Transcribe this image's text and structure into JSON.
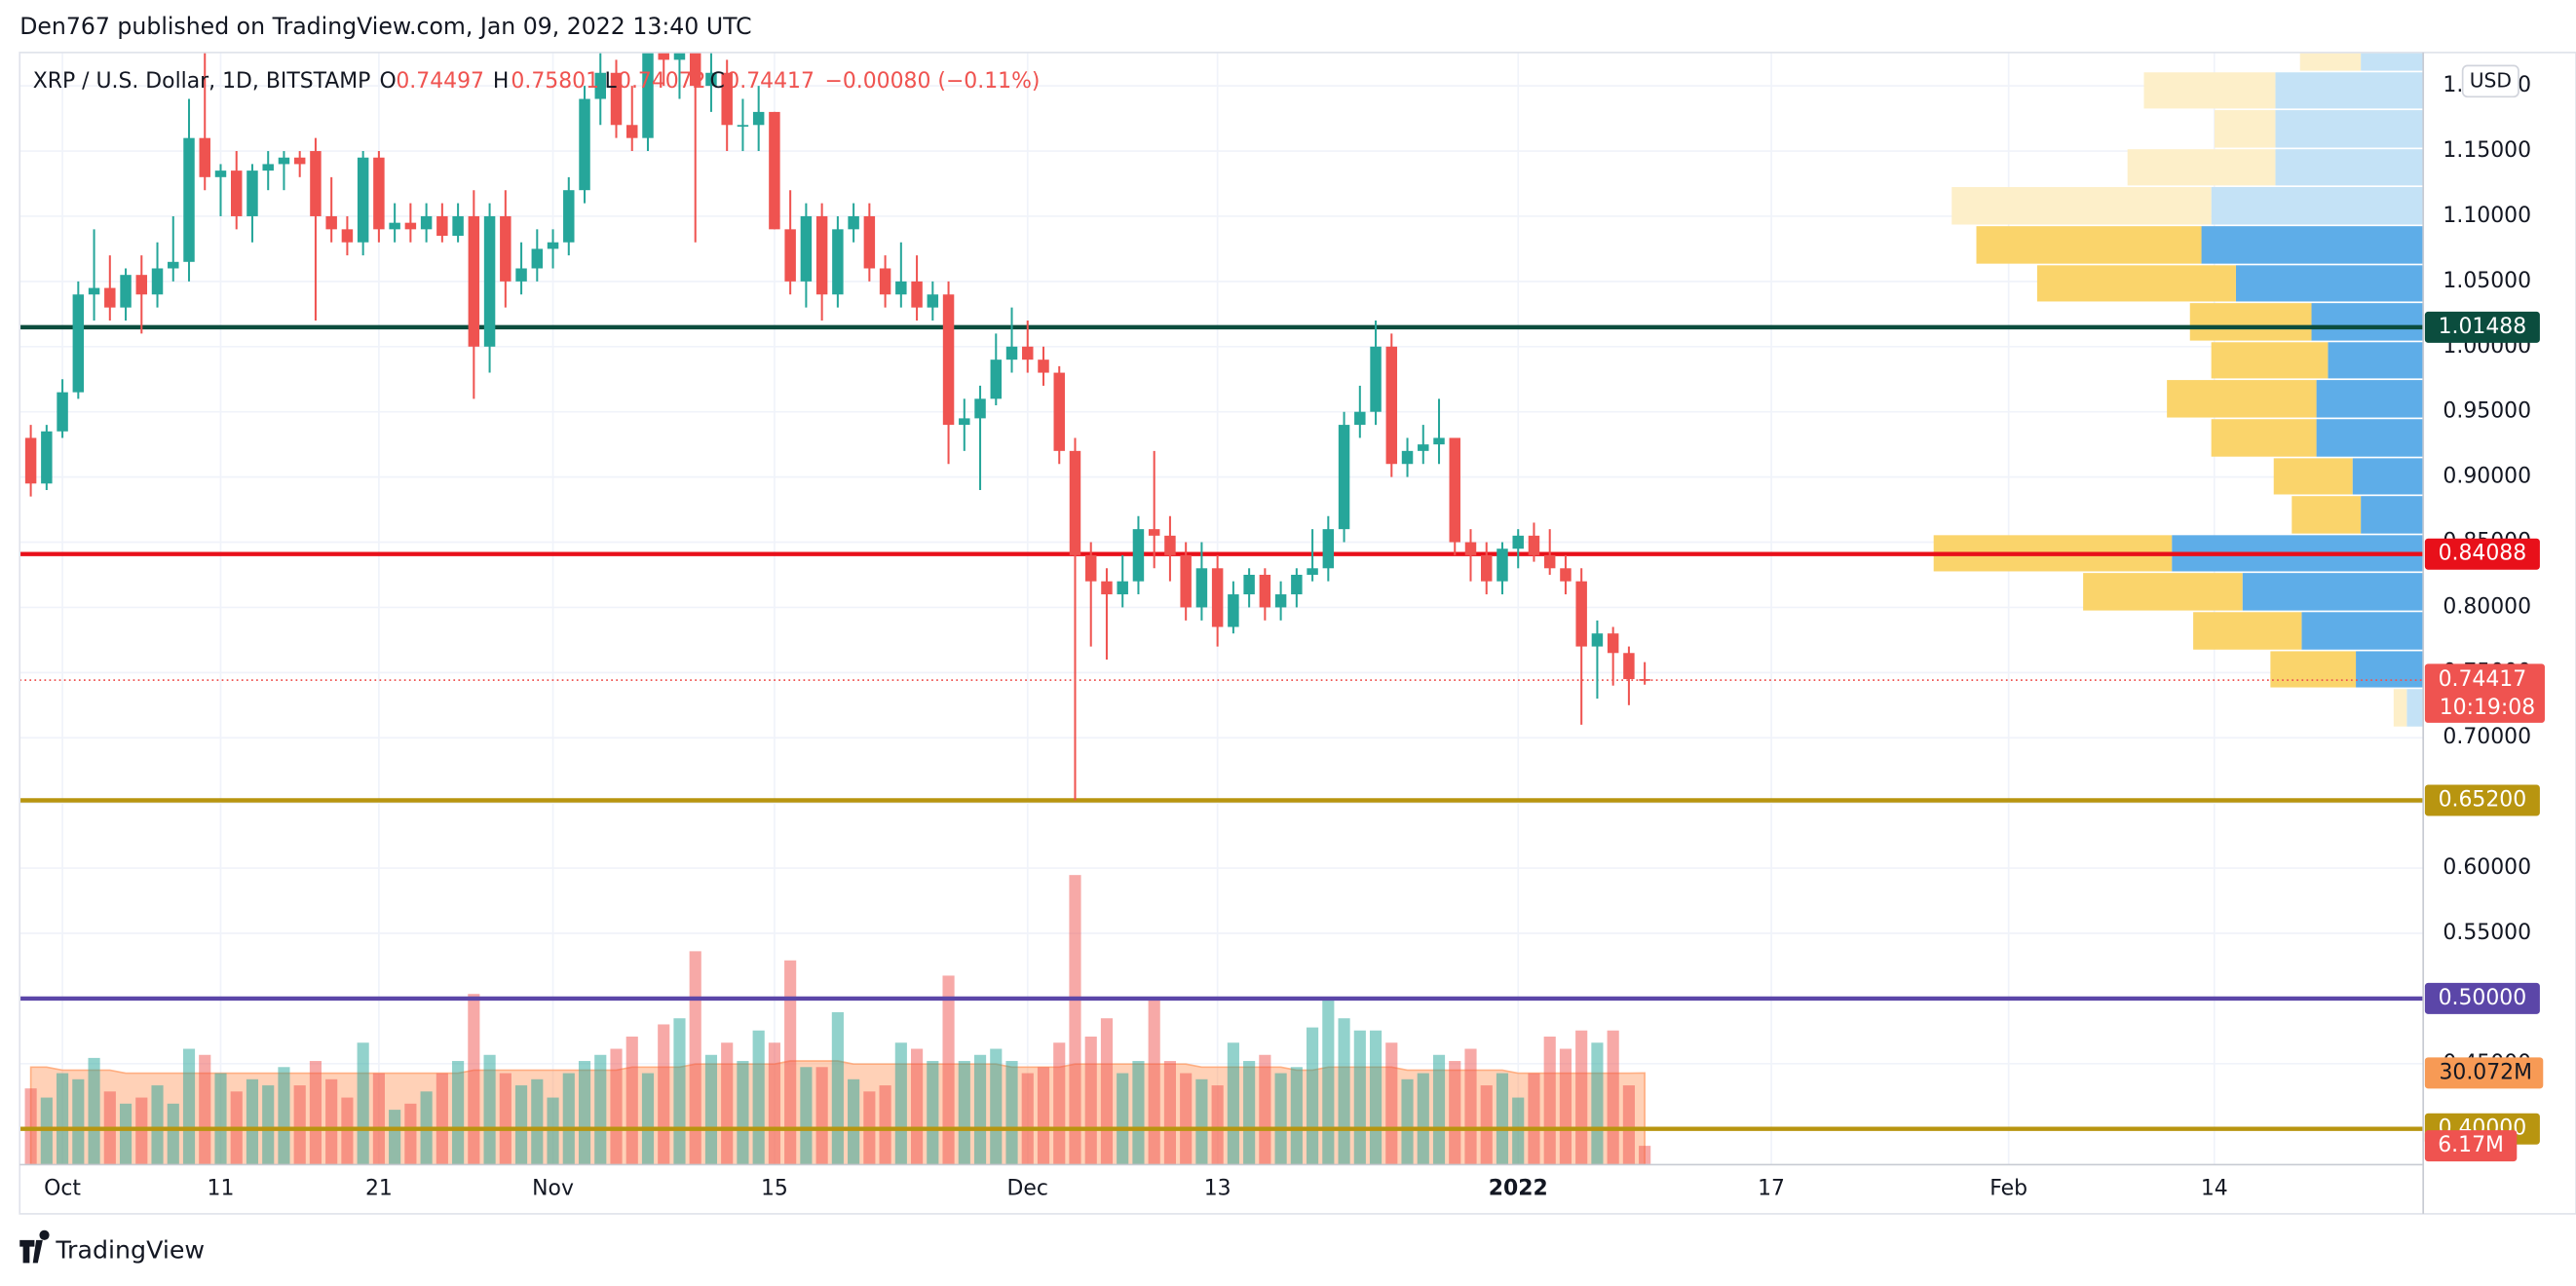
{
  "published": "Den767 published on TradingView.com, Jan 09, 2022 13:40 UTC",
  "brand": "TradingView",
  "chart_data": {
    "type": "candlestick",
    "legend": {
      "symbol": "XRP / U.S. Dollar, 1D, BITSTAMP",
      "o": "O",
      "h": "H",
      "l": "L",
      "c": "C",
      "change": "−0.00080 (−0.11%)"
    },
    "currency": "USD",
    "up_color": "#26a69a",
    "down_color": "#ef5350",
    "xlim": [
      -0.7,
      151.2
    ],
    "xticks": [
      {
        "value": 2,
        "label": "Oct"
      },
      {
        "value": 12,
        "label": "11"
      },
      {
        "value": 22,
        "label": "21"
      },
      {
        "value": 33,
        "label": "Nov"
      },
      {
        "value": 47,
        "label": "15"
      },
      {
        "value": 63,
        "label": "Dec"
      },
      {
        "value": 75,
        "label": "13"
      },
      {
        "value": 94,
        "label": "2022"
      },
      {
        "value": 110,
        "label": "17"
      },
      {
        "value": 125,
        "label": "Feb"
      },
      {
        "value": 138,
        "label": "14"
      }
    ],
    "ylim": [
      0.3726,
      1.2256
    ],
    "yticks": [
      {
        "value": 0.4,
        "label": "0.40000"
      },
      {
        "value": 0.45,
        "label": "0.45000"
      },
      {
        "value": 0.5,
        "label": "0.50000"
      },
      {
        "value": 0.55,
        "label": "0.55000"
      },
      {
        "value": 0.6,
        "label": "0.60000"
      },
      {
        "value": 0.65,
        "label": "0.65000"
      },
      {
        "value": 0.7,
        "label": "0.70000"
      },
      {
        "value": 0.75,
        "label": "0.75000"
      },
      {
        "value": 0.8,
        "label": "0.80000"
      },
      {
        "value": 0.85,
        "label": "0.85000"
      },
      {
        "value": 0.9,
        "label": "0.90000"
      },
      {
        "value": 0.95,
        "label": "0.95000"
      },
      {
        "value": 1.0,
        "label": "1.00000"
      },
      {
        "value": 1.05,
        "label": "1.05000"
      },
      {
        "value": 1.1,
        "label": "1.10000"
      },
      {
        "value": 1.15,
        "label": "1.15000"
      },
      {
        "value": 1.2,
        "label": "1.20000"
      }
    ],
    "grid": true,
    "candles": [
      [
        0.93,
        0.94,
        0.885,
        0.895
      ],
      [
        0.895,
        0.94,
        0.89,
        0.935
      ],
      [
        0.935,
        0.975,
        0.93,
        0.965
      ],
      [
        0.965,
        1.05,
        0.96,
        1.04
      ],
      [
        1.04,
        1.09,
        1.02,
        1.045
      ],
      [
        1.045,
        1.07,
        1.02,
        1.03
      ],
      [
        1.03,
        1.06,
        1.02,
        1.055
      ],
      [
        1.055,
        1.07,
        1.01,
        1.04
      ],
      [
        1.04,
        1.08,
        1.03,
        1.06
      ],
      [
        1.06,
        1.1,
        1.05,
        1.065
      ],
      [
        1.065,
        1.19,
        1.05,
        1.16
      ],
      [
        1.16,
        1.23,
        1.12,
        1.13
      ],
      [
        1.13,
        1.14,
        1.1,
        1.135
      ],
      [
        1.135,
        1.15,
        1.09,
        1.1
      ],
      [
        1.1,
        1.14,
        1.08,
        1.135
      ],
      [
        1.135,
        1.15,
        1.12,
        1.14
      ],
      [
        1.14,
        1.15,
        1.12,
        1.145
      ],
      [
        1.145,
        1.15,
        1.13,
        1.14
      ],
      [
        1.15,
        1.16,
        1.02,
        1.1
      ],
      [
        1.1,
        1.13,
        1.08,
        1.09
      ],
      [
        1.09,
        1.1,
        1.07,
        1.08
      ],
      [
        1.08,
        1.15,
        1.07,
        1.145
      ],
      [
        1.145,
        1.15,
        1.08,
        1.09
      ],
      [
        1.09,
        1.11,
        1.08,
        1.095
      ],
      [
        1.095,
        1.11,
        1.08,
        1.09
      ],
      [
        1.09,
        1.11,
        1.08,
        1.1
      ],
      [
        1.1,
        1.11,
        1.08,
        1.085
      ],
      [
        1.085,
        1.11,
        1.08,
        1.1
      ],
      [
        1.1,
        1.12,
        0.96,
        1.0
      ],
      [
        1.0,
        1.11,
        0.98,
        1.1
      ],
      [
        1.1,
        1.12,
        1.03,
        1.05
      ],
      [
        1.05,
        1.08,
        1.04,
        1.06
      ],
      [
        1.06,
        1.09,
        1.05,
        1.075
      ],
      [
        1.075,
        1.09,
        1.06,
        1.08
      ],
      [
        1.08,
        1.13,
        1.07,
        1.12
      ],
      [
        1.12,
        1.2,
        1.11,
        1.19
      ],
      [
        1.19,
        1.24,
        1.17,
        1.21
      ],
      [
        1.21,
        1.22,
        1.16,
        1.17
      ],
      [
        1.17,
        1.2,
        1.15,
        1.16
      ],
      [
        1.16,
        1.24,
        1.15,
        1.23
      ],
      [
        1.23,
        1.26,
        1.2,
        1.22
      ],
      [
        1.22,
        1.25,
        1.19,
        1.23
      ],
      [
        1.23,
        1.24,
        1.08,
        1.2
      ],
      [
        1.2,
        1.23,
        1.18,
        1.21
      ],
      [
        1.21,
        1.22,
        1.15,
        1.17
      ],
      [
        1.17,
        1.19,
        1.15,
        1.17
      ],
      [
        1.17,
        1.2,
        1.15,
        1.18
      ],
      [
        1.18,
        1.18,
        1.09,
        1.09
      ],
      [
        1.09,
        1.12,
        1.04,
        1.05
      ],
      [
        1.05,
        1.11,
        1.03,
        1.1
      ],
      [
        1.1,
        1.11,
        1.02,
        1.04
      ],
      [
        1.04,
        1.1,
        1.03,
        1.09
      ],
      [
        1.09,
        1.11,
        1.08,
        1.1
      ],
      [
        1.1,
        1.11,
        1.05,
        1.06
      ],
      [
        1.06,
        1.07,
        1.03,
        1.04
      ],
      [
        1.04,
        1.08,
        1.03,
        1.05
      ],
      [
        1.05,
        1.07,
        1.02,
        1.03
      ],
      [
        1.03,
        1.05,
        1.02,
        1.04
      ],
      [
        1.04,
        1.05,
        0.91,
        0.94
      ],
      [
        0.94,
        0.96,
        0.92,
        0.945
      ],
      [
        0.945,
        0.97,
        0.89,
        0.96
      ],
      [
        0.96,
        1.01,
        0.955,
        0.99
      ],
      [
        0.99,
        1.03,
        0.98,
        1.0
      ],
      [
        1.0,
        1.02,
        0.98,
        0.99
      ],
      [
        0.99,
        1.0,
        0.97,
        0.98
      ],
      [
        0.98,
        0.985,
        0.91,
        0.92
      ],
      [
        0.92,
        0.93,
        0.652,
        0.84
      ],
      [
        0.84,
        0.85,
        0.77,
        0.82
      ],
      [
        0.82,
        0.83,
        0.76,
        0.81
      ],
      [
        0.81,
        0.84,
        0.8,
        0.82
      ],
      [
        0.82,
        0.87,
        0.81,
        0.86
      ],
      [
        0.86,
        0.92,
        0.83,
        0.855
      ],
      [
        0.855,
        0.87,
        0.82,
        0.84
      ],
      [
        0.84,
        0.85,
        0.79,
        0.8
      ],
      [
        0.8,
        0.85,
        0.79,
        0.83
      ],
      [
        0.83,
        0.84,
        0.77,
        0.785
      ],
      [
        0.785,
        0.82,
        0.78,
        0.81
      ],
      [
        0.81,
        0.83,
        0.8,
        0.825
      ],
      [
        0.825,
        0.83,
        0.79,
        0.8
      ],
      [
        0.8,
        0.82,
        0.79,
        0.81
      ],
      [
        0.81,
        0.83,
        0.8,
        0.825
      ],
      [
        0.825,
        0.86,
        0.82,
        0.83
      ],
      [
        0.83,
        0.87,
        0.82,
        0.86
      ],
      [
        0.86,
        0.95,
        0.85,
        0.94
      ],
      [
        0.94,
        0.97,
        0.93,
        0.95
      ],
      [
        0.95,
        1.02,
        0.94,
        1.0
      ],
      [
        1.0,
        1.01,
        0.9,
        0.91
      ],
      [
        0.91,
        0.93,
        0.9,
        0.92
      ],
      [
        0.92,
        0.94,
        0.91,
        0.925
      ],
      [
        0.925,
        0.96,
        0.91,
        0.93
      ],
      [
        0.93,
        0.93,
        0.84,
        0.85
      ],
      [
        0.85,
        0.86,
        0.82,
        0.84
      ],
      [
        0.84,
        0.85,
        0.81,
        0.82
      ],
      [
        0.82,
        0.85,
        0.81,
        0.845
      ],
      [
        0.845,
        0.86,
        0.83,
        0.855
      ],
      [
        0.855,
        0.865,
        0.835,
        0.84
      ],
      [
        0.84,
        0.86,
        0.825,
        0.83
      ],
      [
        0.83,
        0.84,
        0.81,
        0.82
      ],
      [
        0.82,
        0.83,
        0.71,
        0.77
      ],
      [
        0.77,
        0.79,
        0.73,
        0.78
      ],
      [
        0.78,
        0.785,
        0.74,
        0.765
      ],
      [
        0.765,
        0.77,
        0.725,
        0.745
      ],
      [
        0.74497,
        0.75801,
        0.74072,
        0.74417
      ]
    ],
    "countdown": "10:19:08",
    "levels": [
      {
        "value": 1.01488,
        "color": "#0b4d3e"
      },
      {
        "value": 0.84088,
        "color": "#e8101a"
      },
      {
        "value": 0.652,
        "label": "0.65200",
        "color": "#b89510"
      },
      {
        "value": 0.5,
        "label": "0.50000",
        "color": "#5b46a8"
      },
      {
        "value": 0.4,
        "label": "0.40000",
        "color": "#b89510"
      }
    ],
    "volume_ylim": [
      0,
      120
    ],
    "volume": [
      25,
      22,
      30,
      28,
      35,
      24,
      20,
      22,
      26,
      20,
      38,
      36,
      30,
      24,
      28,
      26,
      32,
      26,
      34,
      28,
      22,
      40,
      30,
      18,
      20,
      24,
      30,
      34,
      56,
      36,
      30,
      26,
      28,
      22,
      30,
      34,
      36,
      38,
      42,
      30,
      46,
      48,
      70,
      36,
      40,
      34,
      44,
      40,
      67,
      32,
      32,
      50,
      28,
      24,
      26,
      40,
      38,
      34,
      62,
      34,
      36,
      38,
      34,
      30,
      32,
      40,
      95,
      42,
      48,
      30,
      34,
      55,
      34,
      30,
      28,
      26,
      40,
      34,
      36,
      30,
      32,
      45,
      55,
      48,
      44,
      44,
      40,
      28,
      30,
      36,
      34,
      38,
      26,
      30,
      22,
      30,
      42,
      38,
      44,
      40,
      44,
      26,
      6.17
    ],
    "volume_ma": [
      32,
      32,
      31,
      31,
      31,
      31,
      30,
      30,
      30,
      30,
      30,
      30,
      30,
      30,
      30,
      30,
      30,
      30,
      30,
      30,
      30,
      30,
      30,
      30,
      30,
      30,
      30,
      30,
      31,
      31,
      31,
      31,
      31,
      31,
      31,
      31,
      31,
      31,
      32,
      32,
      32,
      32,
      33,
      33,
      33,
      33,
      33,
      33,
      34,
      34,
      34,
      34,
      33,
      33,
      33,
      33,
      33,
      33,
      33,
      33,
      33,
      33,
      32,
      32,
      32,
      32,
      33,
      33,
      33,
      33,
      33,
      33,
      33,
      33,
      32,
      32,
      32,
      32,
      32,
      32,
      31,
      31,
      32,
      32,
      32,
      32,
      32,
      31,
      31,
      31,
      31,
      31,
      31,
      31,
      30,
      30,
      30,
      30,
      30,
      30,
      30,
      30,
      30.072
    ],
    "volume_labels": {
      "ma": "30.072M",
      "last": "6.17M"
    },
    "ma_color": "#ff9960",
    "profile": {
      "bins": [
        0.708,
        0.738,
        0.767,
        0.797,
        0.827,
        0.856,
        0.886,
        0.915,
        0.945,
        0.975,
        1.004,
        1.034,
        1.063,
        1.093,
        1.123,
        1.152,
        1.182,
        1.211,
        1.241
      ],
      "up": [
        10,
        41,
        74,
        110,
        153,
        38,
        43,
        65,
        65,
        58,
        68,
        114,
        135,
        129,
        90,
        90,
        90,
        38
      ],
      "down": [
        8,
        52,
        66,
        97,
        145,
        42,
        48,
        64,
        91,
        71,
        74,
        121,
        137,
        158,
        90,
        37,
        80,
        37
      ],
      "xlim": [
        0,
        1463
      ],
      "value_area": [
        0.738,
        1.093
      ],
      "up_color": "#5eade8",
      "down_color": "#fad46b",
      "up_light": "#c4e2f6",
      "down_light": "#fdefc9"
    }
  }
}
